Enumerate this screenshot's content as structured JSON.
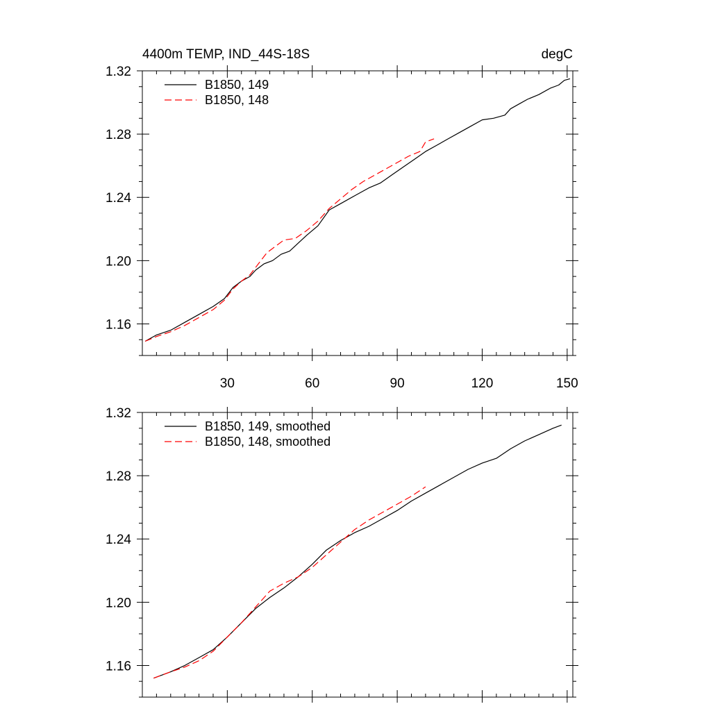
{
  "chart_data": [
    {
      "type": "line",
      "title": "4400m TEMP, IND_44S-18S",
      "units": "degC",
      "xlim": [
        0,
        152
      ],
      "ylim": [
        1.14,
        1.32
      ],
      "xticks": [
        30,
        60,
        90,
        120,
        150
      ],
      "x_tick_labels": [
        "30",
        "60",
        "90",
        "120",
        "150"
      ],
      "yticks": [
        1.16,
        1.2,
        1.24,
        1.28,
        1.32
      ],
      "y_tick_labels": [
        "1.16",
        "1.20",
        "1.24",
        "1.28",
        "1.32"
      ],
      "legend_position": "top-left",
      "grid": false,
      "series": [
        {
          "name": "B1850, 149",
          "color": "#000000",
          "dash": "solid",
          "x": [
            1,
            5,
            10,
            15,
            20,
            25,
            29,
            32,
            35,
            38,
            40,
            43,
            46,
            49,
            52,
            55,
            58,
            62,
            66,
            70,
            75,
            80,
            84,
            88,
            92,
            96,
            100,
            104,
            108,
            112,
            116,
            120,
            124,
            128,
            130,
            133,
            136,
            140,
            144,
            147,
            149,
            151
          ],
          "values": [
            1.149,
            1.153,
            1.156,
            1.161,
            1.166,
            1.171,
            1.176,
            1.183,
            1.187,
            1.19,
            1.194,
            1.198,
            1.2,
            1.204,
            1.206,
            1.211,
            1.216,
            1.222,
            1.232,
            1.236,
            1.241,
            1.246,
            1.249,
            1.254,
            1.259,
            1.264,
            1.269,
            1.273,
            1.277,
            1.281,
            1.285,
            1.289,
            1.29,
            1.292,
            1.296,
            1.299,
            1.302,
            1.305,
            1.309,
            1.311,
            1.314,
            1.315
          ]
        },
        {
          "name": "B1850, 148",
          "color": "#ff0000",
          "dash": "dashed",
          "x": [
            1,
            5,
            10,
            15,
            20,
            25,
            29,
            32,
            35,
            38,
            41,
            44,
            47,
            50,
            54,
            58,
            62,
            66,
            70,
            74,
            78,
            82,
            86,
            90,
            94,
            98,
            100,
            103
          ],
          "values": [
            1.149,
            1.152,
            1.155,
            1.159,
            1.164,
            1.169,
            1.175,
            1.182,
            1.187,
            1.191,
            1.198,
            1.205,
            1.209,
            1.213,
            1.214,
            1.219,
            1.225,
            1.233,
            1.239,
            1.245,
            1.25,
            1.254,
            1.258,
            1.262,
            1.266,
            1.269,
            1.275,
            1.277
          ]
        }
      ]
    },
    {
      "type": "line",
      "xlim": [
        0,
        152
      ],
      "ylim": [
        1.14,
        1.32
      ],
      "xticks": [
        30,
        60,
        90,
        120,
        150
      ],
      "yticks": [
        1.16,
        1.2,
        1.24,
        1.28,
        1.32
      ],
      "y_tick_labels": [
        "1.16",
        "1.20",
        "1.24",
        "1.28",
        "1.32"
      ],
      "legend_position": "top-left",
      "grid": false,
      "series": [
        {
          "name": "B1850, 149, smoothed",
          "color": "#000000",
          "dash": "solid",
          "x": [
            4,
            10,
            15,
            20,
            25,
            30,
            35,
            40,
            45,
            50,
            55,
            60,
            65,
            70,
            75,
            80,
            85,
            90,
            95,
            100,
            105,
            110,
            115,
            120,
            125,
            130,
            135,
            140,
            145,
            148
          ],
          "values": [
            1.152,
            1.156,
            1.16,
            1.165,
            1.17,
            1.178,
            1.187,
            1.196,
            1.203,
            1.209,
            1.216,
            1.224,
            1.233,
            1.239,
            1.244,
            1.248,
            1.253,
            1.258,
            1.264,
            1.269,
            1.274,
            1.279,
            1.284,
            1.288,
            1.291,
            1.297,
            1.302,
            1.306,
            1.31,
            1.312
          ]
        },
        {
          "name": "B1850, 148, smoothed",
          "color": "#ff0000",
          "dash": "dashed",
          "x": [
            4,
            10,
            15,
            20,
            25,
            30,
            35,
            40,
            45,
            50,
            55,
            60,
            65,
            70,
            75,
            80,
            85,
            90,
            95,
            100
          ],
          "values": [
            1.152,
            1.156,
            1.159,
            1.163,
            1.169,
            1.178,
            1.187,
            1.197,
            1.207,
            1.212,
            1.216,
            1.222,
            1.23,
            1.238,
            1.246,
            1.252,
            1.257,
            1.262,
            1.267,
            1.273
          ]
        }
      ]
    }
  ]
}
